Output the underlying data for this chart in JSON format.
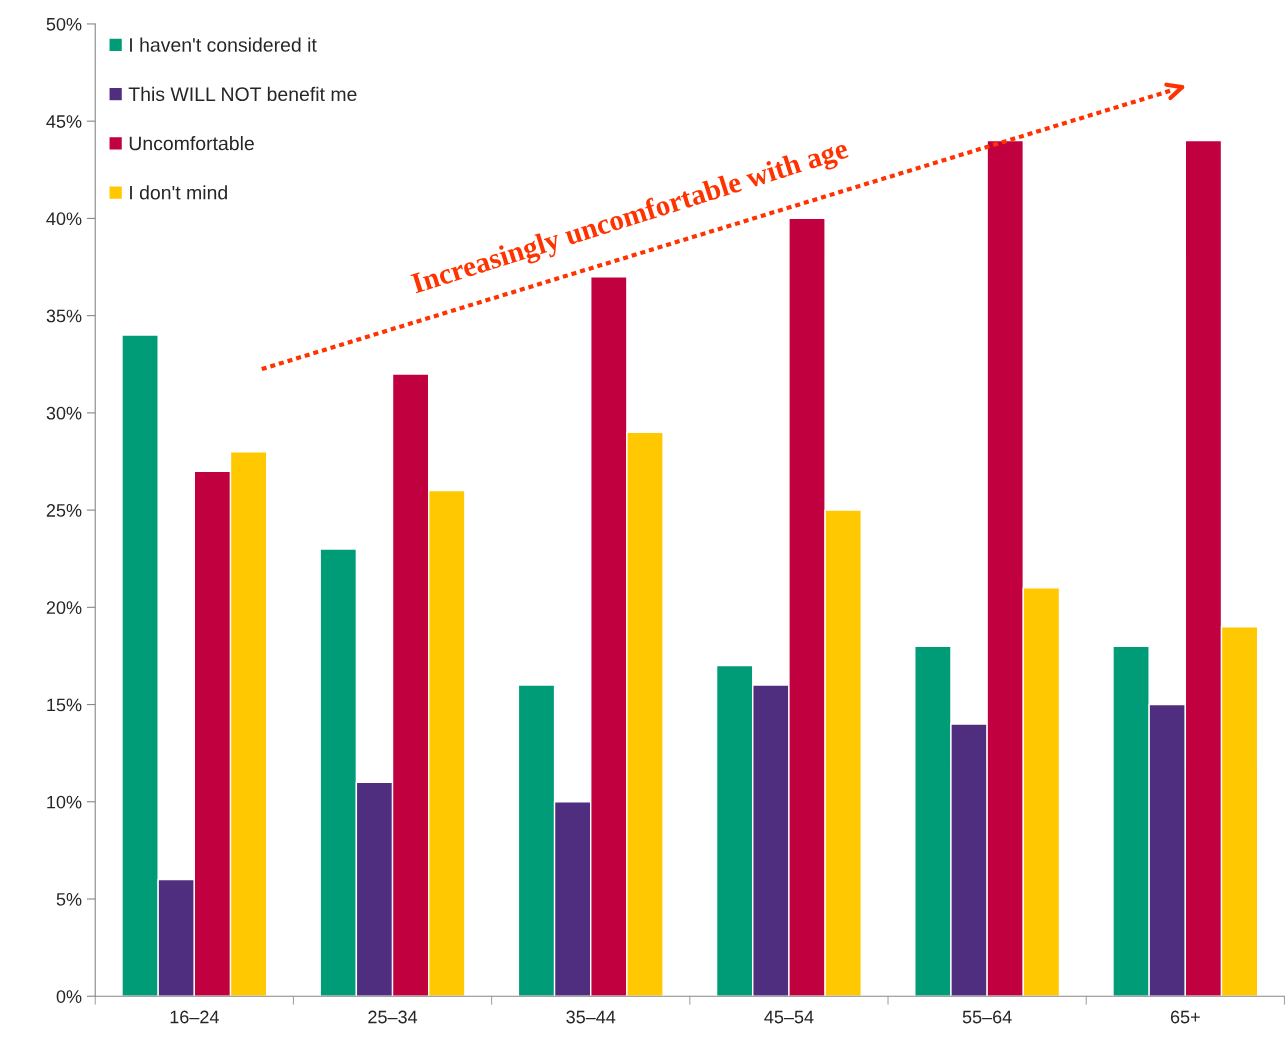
{
  "chart_data": {
    "type": "bar",
    "categories": [
      "16–24",
      "25–34",
      "35–44",
      "45–54",
      "55–64",
      "65+"
    ],
    "series": [
      {
        "name": "I haven't considered it",
        "color": "#009b77",
        "values": [
          34,
          23,
          16,
          17,
          18,
          18
        ]
      },
      {
        "name": "This WILL NOT benefit me",
        "color": "#4f2d7f",
        "values": [
          6,
          11,
          10,
          16,
          14,
          15
        ]
      },
      {
        "name": "Uncomfortable",
        "color": "#c0003f",
        "values": [
          27,
          32,
          37,
          40,
          44,
          44
        ]
      },
      {
        "name": "I don't mind",
        "color": "#ffc800",
        "values": [
          28,
          26,
          29,
          25,
          21,
          19
        ]
      }
    ],
    "ylim": [
      0,
      50
    ],
    "yticks": [
      {
        "value": 0,
        "label": "0%"
      },
      {
        "value": 5,
        "label": "5%"
      },
      {
        "value": 10,
        "label": "10%"
      },
      {
        "value": 15,
        "label": "15%"
      },
      {
        "value": 20,
        "label": "20%"
      },
      {
        "value": 25,
        "label": "25%"
      },
      {
        "value": 30,
        "label": "30%"
      },
      {
        "value": 35,
        "label": "35%"
      },
      {
        "value": 40,
        "label": "40%"
      },
      {
        "value": 45,
        "label": "45%"
      },
      {
        "value": 50,
        "label": "50%"
      }
    ],
    "annotations": [
      "Increasingly uncomfortable with age"
    ],
    "grid": false,
    "legend": "top left"
  }
}
